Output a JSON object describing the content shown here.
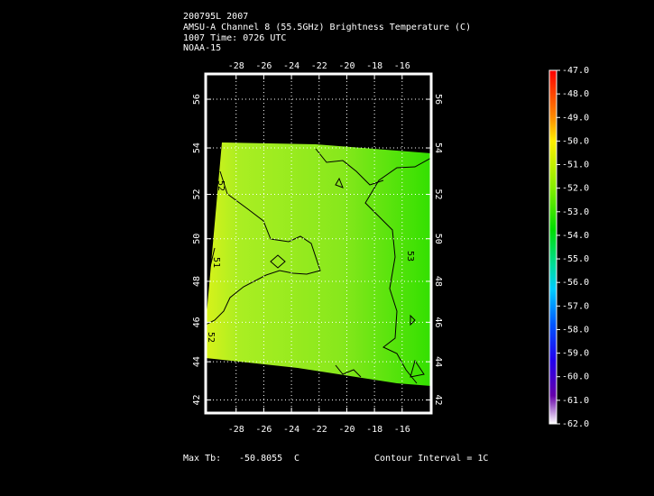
{
  "header": {
    "lines": [
      "200795L 2007",
      "AMSU-A Channel 8 (55.5GHz) Brightness Temperature (C)",
      "1007 Time: 0726 UTC",
      "NOAA-15"
    ]
  },
  "map": {
    "lon_range": [
      -30.2,
      -13.9
    ],
    "lat_range": [
      41.3,
      57.0
    ],
    "lon_ticks": [
      -28,
      -26,
      -24,
      -22,
      -20,
      -18,
      -16
    ],
    "lat_ticks": [
      42,
      44,
      46,
      48,
      50,
      52,
      54,
      56
    ],
    "contour_labels": [
      "52",
      "51",
      "52",
      "53"
    ]
  },
  "colorbar": {
    "ticks": [
      {
        "value": -47,
        "label": "-47.0"
      },
      {
        "value": -48,
        "label": "-48.0"
      },
      {
        "value": -49,
        "label": "-49.0"
      },
      {
        "value": -50,
        "label": "-50.0"
      },
      {
        "value": -51,
        "label": "-51.0"
      },
      {
        "value": -52,
        "label": "-52.0"
      },
      {
        "value": -53,
        "label": "-53.0"
      },
      {
        "value": -54,
        "label": "-54.0"
      },
      {
        "value": -55,
        "label": "-55.0"
      },
      {
        "value": -56,
        "label": "-56.0"
      },
      {
        "value": -57,
        "label": "-57.0"
      },
      {
        "value": -58,
        "label": "-58.0"
      },
      {
        "value": -59,
        "label": "-59.0"
      },
      {
        "value": -60,
        "label": "-60.0"
      },
      {
        "value": -61,
        "label": "-61.0"
      },
      {
        "value": -62,
        "label": "-62.0"
      }
    ]
  },
  "footer": {
    "max_label": "Max Tb:",
    "max_value": "-50.8055",
    "max_unit": "C",
    "contour_interval": "Contour Interval = 1C"
  }
}
